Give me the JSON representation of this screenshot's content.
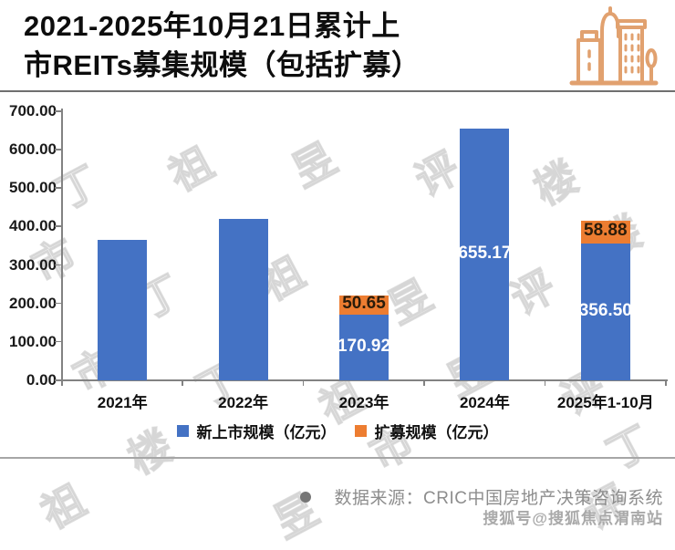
{
  "title": {
    "line1": "2021-2025年10月21日累计上",
    "line2": "市REITs募集规模（包括扩募）"
  },
  "header_icon": "buildings-icon",
  "chart_data": {
    "type": "bar",
    "stacked": true,
    "categories": [
      "2021年",
      "2022年",
      "2023年",
      "2024年",
      "2025年1-10月"
    ],
    "series": [
      {
        "name": "新上市规模（亿元）",
        "color": "#4472C4",
        "values": [
          365,
          420,
          170.92,
          655.17,
          356.5
        ],
        "labels": [
          "",
          "",
          "170.92",
          "655.17",
          "356.50"
        ]
      },
      {
        "name": "扩募规模（亿元）",
        "color": "#ED7D31",
        "values": [
          0,
          0,
          50.65,
          0,
          58.88
        ],
        "labels": [
          "",
          "",
          "50.65",
          "",
          "58.88"
        ]
      }
    ],
    "title": "2021-2025年10月21日累计上市REITs募集规模（包括扩募）",
    "xlabel": "",
    "ylabel": "",
    "ylim": [
      0,
      700
    ],
    "yticks": [
      "700.00",
      "600.00",
      "500.00",
      "400.00",
      "300.00",
      "200.00",
      "100.00",
      "0.00"
    ],
    "grid": false,
    "legend_position": "bottom",
    "note": "2021 and 2022 values estimated from bar heights; no data labels shown for them"
  },
  "footer": {
    "bullet": "●",
    "source": "数据来源：CRIC中国房地产决策咨询系统",
    "watermark": "搜狐号@搜狐焦点渭南站"
  },
  "background_watermark": {
    "text": "丁祖昱评楼市"
  },
  "colors": {
    "new_listing_blue": "#4472C4",
    "expansion_orange": "#ED7D31",
    "axis_gray": "#828282",
    "source_gray": "#8d8d8d"
  }
}
